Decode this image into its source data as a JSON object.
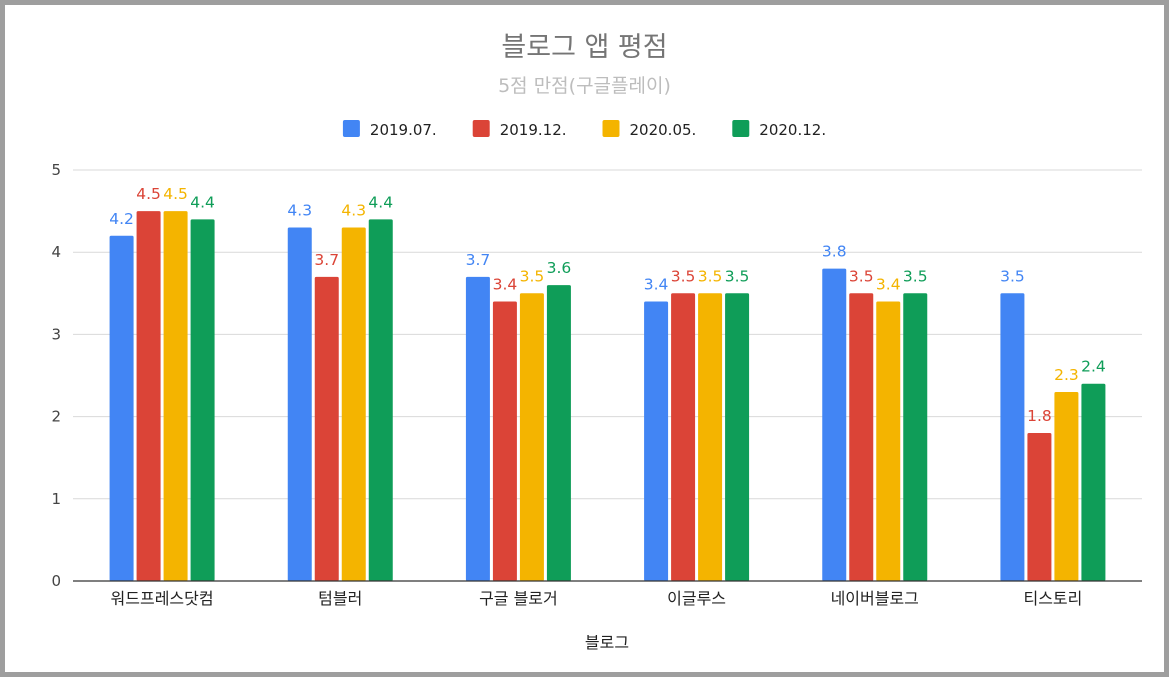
{
  "chart_data": {
    "type": "bar",
    "title": "블로그 앱 평점",
    "subtitle": "5점 만점(구글플레이)",
    "xlabel": "블로그",
    "ylabel": "",
    "ylim": [
      0,
      5
    ],
    "yticks": [
      0,
      1,
      2,
      3,
      4,
      5
    ],
    "grid": true,
    "legend_position": "top",
    "categories": [
      "워드프레스닷컴",
      "텀블러",
      "구글 블로거",
      "이글루스",
      "네이버블로그",
      "티스토리"
    ],
    "series": [
      {
        "name": "2019.07.",
        "color": "#4285f4",
        "values": [
          4.2,
          4.3,
          3.7,
          3.4,
          3.8,
          3.5
        ]
      },
      {
        "name": "2019.12.",
        "color": "#db4437",
        "values": [
          4.5,
          3.7,
          3.4,
          3.5,
          3.5,
          1.8
        ]
      },
      {
        "name": "2020.05.",
        "color": "#f4b400",
        "values": [
          4.5,
          4.3,
          3.5,
          3.5,
          3.4,
          2.3
        ]
      },
      {
        "name": "2020.12.",
        "color": "#0f9d58",
        "values": [
          4.4,
          4.4,
          3.6,
          3.5,
          3.5,
          2.4
        ]
      }
    ]
  }
}
